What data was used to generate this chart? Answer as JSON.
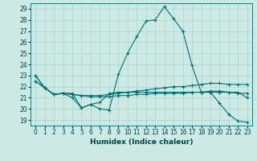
{
  "title": "",
  "xlabel": "Humidex (Indice chaleur)",
  "ylabel": "",
  "background_color": "#cce9e4",
  "line_color": "#007070",
  "grid_color": "#aad4cc",
  "xlim": [
    -0.5,
    23.5
  ],
  "ylim": [
    18.5,
    29.5
  ],
  "yticks": [
    19,
    20,
    21,
    22,
    23,
    24,
    25,
    26,
    27,
    28,
    29
  ],
  "xticks": [
    0,
    1,
    2,
    3,
    4,
    5,
    6,
    7,
    8,
    9,
    10,
    11,
    12,
    13,
    14,
    15,
    16,
    17,
    18,
    19,
    20,
    21,
    22,
    23
  ],
  "lines": [
    {
      "x": [
        0,
        1,
        2,
        3,
        4,
        5,
        6,
        7,
        8,
        9,
        10,
        11,
        12,
        13,
        14,
        15,
        16,
        17,
        18,
        19,
        20,
        21,
        22,
        23
      ],
      "y": [
        23.0,
        21.9,
        21.3,
        21.4,
        21.4,
        20.1,
        20.4,
        20.0,
        19.9,
        23.1,
        25.0,
        26.5,
        27.9,
        28.0,
        29.2,
        28.1,
        27.0,
        23.9,
        21.5,
        21.5,
        20.5,
        19.5,
        18.9,
        18.8
      ]
    },
    {
      "x": [
        0,
        1,
        2,
        3,
        4,
        5,
        6,
        7,
        8,
        9,
        10,
        11,
        12,
        13,
        14,
        15,
        16,
        17,
        18,
        19,
        20,
        21,
        22,
        23
      ],
      "y": [
        22.5,
        21.9,
        21.3,
        21.4,
        21.3,
        21.2,
        21.2,
        21.2,
        21.3,
        21.4,
        21.5,
        21.6,
        21.7,
        21.8,
        21.9,
        22.0,
        22.0,
        22.1,
        22.2,
        22.3,
        22.3,
        22.2,
        22.2,
        22.2
      ]
    },
    {
      "x": [
        0,
        1,
        2,
        3,
        4,
        5,
        6,
        7,
        8,
        9,
        10,
        11,
        12,
        13,
        14,
        15,
        16,
        17,
        18,
        19,
        20,
        21,
        22,
        23
      ],
      "y": [
        22.5,
        21.9,
        21.3,
        21.4,
        21.3,
        21.2,
        21.1,
        21.1,
        21.1,
        21.2,
        21.2,
        21.3,
        21.3,
        21.4,
        21.4,
        21.4,
        21.4,
        21.5,
        21.5,
        21.5,
        21.5,
        21.5,
        21.4,
        21.4
      ]
    },
    {
      "x": [
        0,
        1,
        2,
        3,
        4,
        5,
        6,
        7,
        8,
        9,
        10,
        11,
        12,
        13,
        14,
        15,
        16,
        17,
        18,
        19,
        20,
        21,
        22,
        23
      ],
      "y": [
        23.0,
        21.9,
        21.3,
        21.4,
        21.0,
        20.1,
        20.4,
        20.6,
        21.4,
        21.5,
        21.5,
        21.5,
        21.5,
        21.5,
        21.5,
        21.5,
        21.5,
        21.5,
        21.5,
        21.6,
        21.6,
        21.5,
        21.5,
        21.0
      ]
    }
  ]
}
